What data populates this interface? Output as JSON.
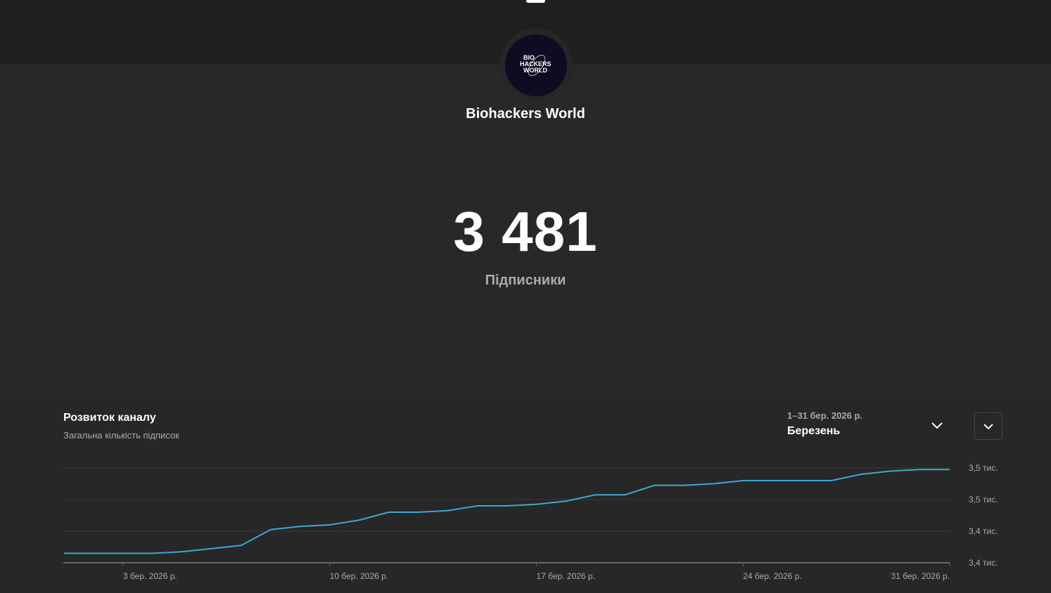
{
  "channel": {
    "name": "Biohackers World",
    "logo_text": "BIO HACKERS WORLD",
    "avatar_bg": "#0d0c22"
  },
  "stats": {
    "subscribers": "3 481",
    "subscribers_label": "Підписники"
  },
  "growth": {
    "title": "Розвиток каналу",
    "subtitle": "Загальна кількість підписок",
    "date_range": "1–31 бер. 2026 р.",
    "period": "Березень",
    "period_icon": "chevron-down-icon",
    "more_icon": "chevron-down-icon"
  },
  "chart_data": {
    "type": "line",
    "title": "Розвиток каналу",
    "ylabel": "Загальна кількість підписок",
    "x": [
      1,
      2,
      3,
      4,
      5,
      6,
      7,
      8,
      9,
      10,
      11,
      12,
      13,
      14,
      15,
      16,
      17,
      18,
      19,
      20,
      21,
      22,
      23,
      24,
      25,
      26,
      27,
      28,
      29,
      30,
      31
    ],
    "series": [
      {
        "name": "Підписники",
        "color": "#3ea6d2",
        "values": [
          3426,
          3426,
          3426,
          3426,
          3427,
          3429,
          3431,
          3441,
          3443,
          3444,
          3447,
          3452,
          3452,
          3453,
          3456,
          3456,
          3457,
          3459,
          3463,
          3463,
          3469,
          3469,
          3470,
          3472,
          3472,
          3472,
          3472,
          3476,
          3478,
          3479,
          3479
        ]
      }
    ],
    "ylim": [
      3420,
      3480
    ],
    "yticks": [
      3480,
      3460,
      3440,
      3420
    ],
    "ytick_labels": [
      "3,5 тис.",
      "3,5 тис.",
      "3,4 тис.",
      "3,4 тис."
    ],
    "xticks": [
      3,
      10,
      17,
      24,
      31
    ],
    "xtick_labels": [
      "3 бер. 2026 р.",
      "10 бер. 2026 р.",
      "17 бер. 2026 р.",
      "24 бер. 2026 р.",
      "31 бер. 2026 р."
    ],
    "grid": true
  }
}
